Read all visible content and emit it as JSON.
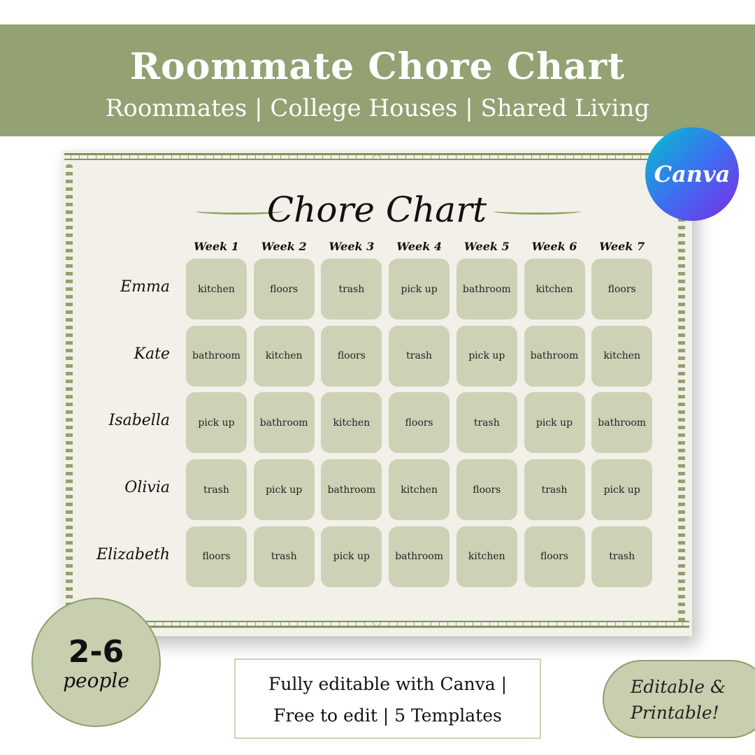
{
  "header": {
    "title": "Roommate Chore Chart",
    "subtitle": "Roommates | College Houses | Shared Living"
  },
  "chart": {
    "title": "Chore Chart",
    "weeks": [
      "Week 1",
      "Week 2",
      "Week 3",
      "Week 4",
      "Week 5",
      "Week 6",
      "Week 7"
    ],
    "rows": [
      {
        "name": "Emma",
        "chores": [
          "kitchen",
          "floors",
          "trash",
          "pick up",
          "bathroom",
          "kitchen",
          "floors"
        ]
      },
      {
        "name": "Kate",
        "chores": [
          "bathroom",
          "kitchen",
          "floors",
          "trash",
          "pick up",
          "bathroom",
          "kitchen"
        ]
      },
      {
        "name": "Isabella",
        "chores": [
          "pick up",
          "bathroom",
          "kitchen",
          "floors",
          "trash",
          "pick up",
          "bathroom"
        ]
      },
      {
        "name": "Olivia",
        "chores": [
          "trash",
          "pick up",
          "bathroom",
          "kitchen",
          "floors",
          "trash",
          "pick up"
        ]
      },
      {
        "name": "Elizabeth",
        "chores": [
          "floors",
          "trash",
          "pick up",
          "bathroom",
          "kitchen",
          "floors",
          "trash"
        ]
      }
    ]
  },
  "canva_logo": "Canva",
  "badge": {
    "count": "2-6",
    "label": "people"
  },
  "info": {
    "line1": "Fully editable with Canva |",
    "line2": "Free to edit | 5 Templates"
  },
  "pill": {
    "line1": "Editable &",
    "line2": "Printable!"
  },
  "colors": {
    "header": "#93a173",
    "cell": "#cdd2b6",
    "paper": "#f2f0e8",
    "accent": "#c8cfae"
  }
}
